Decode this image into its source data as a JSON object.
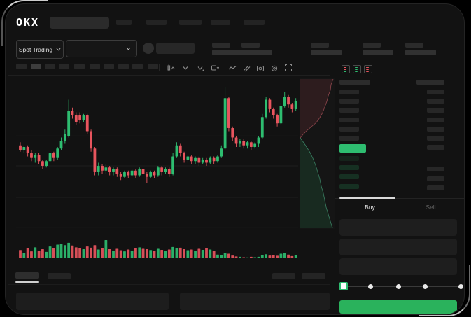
{
  "brand": {
    "logo_text": "OKX"
  },
  "header": {
    "nav_placeholders": 5
  },
  "market_bar": {
    "market_type_label": "Spot Trading",
    "stat_groups": 5
  },
  "chart_toolbar": {
    "timeframe_placeholders": 10,
    "active_timeframe_index": 1,
    "icons": [
      "candle-style-icon",
      "candle-style-chevron-icon",
      "interval-chevron-icon",
      "display-box-chevron-icon",
      "line-chart-icon",
      "draw-pencil-icon",
      "camera-icon",
      "settings-gear-icon",
      "fullscreen-icon"
    ]
  },
  "chart_data": {
    "type": "candlestick",
    "title": "",
    "x_axis": "time (tick labels not visible)",
    "y_axis": "price (relative scale 0-100, labels not visible)",
    "grid": true,
    "gridline_prices": [
      82,
      63,
      44,
      24,
      5
    ],
    "up_color": "#2ebd70",
    "down_color": "#e8555e",
    "candles": [
      [
        57,
        59,
        53,
        54
      ],
      [
        54,
        57,
        52,
        56
      ],
      [
        56,
        57,
        50,
        52
      ],
      [
        52,
        54,
        47,
        49
      ],
      [
        49,
        52,
        46,
        51
      ],
      [
        51,
        52,
        45,
        47
      ],
      [
        47,
        48,
        42,
        44
      ],
      [
        44,
        48,
        43,
        47
      ],
      [
        47,
        53,
        45,
        52
      ],
      [
        52,
        53,
        47,
        49
      ],
      [
        49,
        56,
        48,
        55
      ],
      [
        55,
        62,
        54,
        60
      ],
      [
        60,
        67,
        58,
        64
      ],
      [
        63,
        86,
        62,
        79
      ],
      [
        79,
        81,
        74,
        76
      ],
      [
        76,
        78,
        70,
        72
      ],
      [
        76,
        78,
        71,
        73
      ],
      [
        73,
        77,
        72,
        76
      ],
      [
        76,
        77,
        64,
        66
      ],
      [
        66,
        67,
        53,
        55
      ],
      [
        55,
        56,
        38,
        40
      ],
      [
        40,
        46,
        38,
        44
      ],
      [
        44,
        45,
        39,
        41
      ],
      [
        41,
        45,
        39,
        43
      ],
      [
        43,
        44,
        38,
        40
      ],
      [
        40,
        43,
        38,
        42
      ],
      [
        42,
        43,
        37,
        39
      ],
      [
        39,
        40,
        35,
        37
      ],
      [
        37,
        41,
        36,
        40
      ],
      [
        40,
        41,
        36,
        38
      ],
      [
        38,
        42,
        37,
        41
      ],
      [
        41,
        42,
        36,
        38
      ],
      [
        38,
        43,
        37,
        42
      ],
      [
        42,
        43,
        37,
        39
      ],
      [
        39,
        40,
        33,
        37
      ],
      [
        37,
        41,
        36,
        40
      ],
      [
        40,
        41,
        36,
        38
      ],
      [
        38,
        44,
        37,
        43
      ],
      [
        43,
        44,
        38,
        40
      ],
      [
        40,
        43,
        39,
        42
      ],
      [
        42,
        43,
        37,
        39
      ],
      [
        39,
        52,
        38,
        50
      ],
      [
        50,
        59,
        49,
        57
      ],
      [
        57,
        58,
        50,
        52
      ],
      [
        52,
        53,
        46,
        48
      ],
      [
        48,
        51,
        46,
        50
      ],
      [
        50,
        51,
        45,
        47
      ],
      [
        47,
        50,
        45,
        49
      ],
      [
        49,
        50,
        44,
        46
      ],
      [
        46,
        49,
        45,
        48
      ],
      [
        48,
        49,
        44,
        46
      ],
      [
        46,
        50,
        45,
        49
      ],
      [
        49,
        50,
        45,
        47
      ],
      [
        47,
        51,
        46,
        50
      ],
      [
        50,
        57,
        49,
        55
      ],
      [
        55,
        94,
        54,
        87
      ],
      [
        87,
        88,
        66,
        68
      ],
      [
        68,
        69,
        60,
        62
      ],
      [
        62,
        63,
        56,
        58
      ],
      [
        58,
        61,
        56,
        60
      ],
      [
        60,
        61,
        55,
        57
      ],
      [
        57,
        60,
        55,
        59
      ],
      [
        59,
        60,
        54,
        56
      ],
      [
        56,
        59,
        55,
        58
      ],
      [
        58,
        63,
        56,
        62
      ],
      [
        62,
        77,
        61,
        75
      ],
      [
        75,
        88,
        74,
        86
      ],
      [
        86,
        87,
        78,
        80
      ],
      [
        80,
        81,
        74,
        76
      ],
      [
        76,
        77,
        69,
        71
      ],
      [
        71,
        84,
        70,
        82
      ],
      [
        82,
        91,
        81,
        88
      ],
      [
        88,
        89,
        81,
        83
      ],
      [
        83,
        84,
        78,
        80
      ],
      [
        80,
        87,
        79,
        85
      ]
    ],
    "volumes": [
      45,
      30,
      55,
      38,
      60,
      42,
      50,
      35,
      65,
      55,
      75,
      80,
      72,
      85,
      70,
      60,
      55,
      50,
      65,
      58,
      72,
      48,
      55,
      100,
      50,
      40,
      52,
      44,
      38,
      48,
      42,
      55,
      60,
      52,
      50,
      45,
      40,
      52,
      46,
      42,
      48,
      62,
      55,
      58,
      50,
      44,
      48,
      40,
      52,
      46,
      55,
      48,
      42,
      20,
      18,
      30,
      25,
      15,
      10,
      8,
      6,
      5,
      8,
      6,
      8,
      18,
      22,
      15,
      18,
      14,
      25,
      30,
      20,
      12,
      18
    ],
    "depth_profile": {
      "ask_color": "#e8555e",
      "bid_color": "#2ebd70",
      "asks_curve": [
        [
          47,
          0
        ],
        [
          44,
          8
        ],
        [
          43,
          16
        ],
        [
          40,
          24
        ],
        [
          38,
          32
        ],
        [
          35,
          40
        ],
        [
          32,
          48
        ],
        [
          28,
          55
        ],
        [
          23,
          62
        ],
        [
          16,
          68
        ],
        [
          9,
          74
        ],
        [
          4,
          79
        ],
        [
          0,
          84
        ]
      ],
      "bids_curve": [
        [
          0,
          84
        ],
        [
          5,
          91
        ],
        [
          9,
          97
        ],
        [
          14,
          105
        ],
        [
          18,
          113
        ],
        [
          22,
          123
        ],
        [
          25,
          133
        ],
        [
          28,
          143
        ],
        [
          30,
          153
        ],
        [
          33,
          163
        ],
        [
          35,
          173
        ],
        [
          37,
          183
        ],
        [
          40,
          193
        ],
        [
          43,
          203
        ],
        [
          46,
          213
        ]
      ]
    }
  },
  "orderbook": {
    "view_mode_icons": [
      "book-split-icon",
      "book-bids-icon",
      "book-asks-icon"
    ],
    "ask_price_rows": 6,
    "ask_amount_rows": 7,
    "last_price_highlight_color": "#2ebd70",
    "bid_price_rows": 4,
    "bid_amount_rows": 3
  },
  "trade_panel": {
    "tabs": [
      {
        "label": "Buy",
        "active": true
      },
      {
        "label": "Sell",
        "active": false
      }
    ],
    "input_placeholders": 3,
    "slider": {
      "stops": 5,
      "active_stop": 0,
      "positions": [
        0,
        0.23,
        0.47,
        0.7,
        1
      ]
    },
    "submit_button": {
      "label": "",
      "color": "#2ab25c"
    }
  },
  "bottom_section": {
    "tab_placeholders": 2,
    "active_tab_index": 0,
    "action_placeholders": 2,
    "panel_placeholders": 2
  },
  "colors": {
    "background": "#000000",
    "device": "#121212",
    "placeholder": "#272727",
    "up": "#2ebd70",
    "down": "#e8555e",
    "buy_button": "#2ab25c",
    "text_primary": "#e6e6e6",
    "text_muted": "#5f5f5f"
  }
}
